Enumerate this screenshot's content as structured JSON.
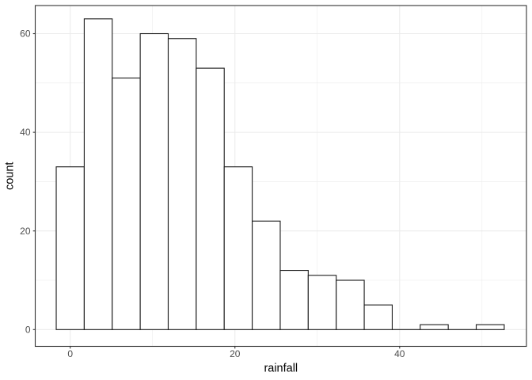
{
  "chart_data": {
    "type": "bar",
    "subtype": "histogram",
    "title": "",
    "xlabel": "rainfall",
    "ylabel": "count",
    "bin_start": -1.7,
    "bin_width": 3.4,
    "bin_counts": [
      33,
      63,
      51,
      60,
      59,
      53,
      33,
      22,
      12,
      11,
      10,
      5,
      0,
      1,
      0,
      1
    ],
    "x_major_ticks": [
      0,
      20,
      40
    ],
    "x_minor_gridlines": [
      10,
      30,
      50
    ],
    "y_major_ticks": [
      0,
      20,
      40,
      60
    ],
    "y_minor_gridlines": [
      10,
      30,
      50
    ],
    "xlim": [
      -4.25,
      55.4
    ],
    "ylim": [
      -3.4,
      65.7
    ],
    "grid": "on",
    "legend": "none",
    "colors": {
      "background": "#FFFFFF",
      "panel_background": "#FFFFFF",
      "panel_border": "#333333",
      "gridline": "#EBEBEB",
      "bar_fill": "#FFFFFF",
      "bar_outline": "#1A1A1A",
      "tick_mark": "#333333",
      "tick_label": "#4D4D4D",
      "axis_title": "#000000"
    }
  }
}
